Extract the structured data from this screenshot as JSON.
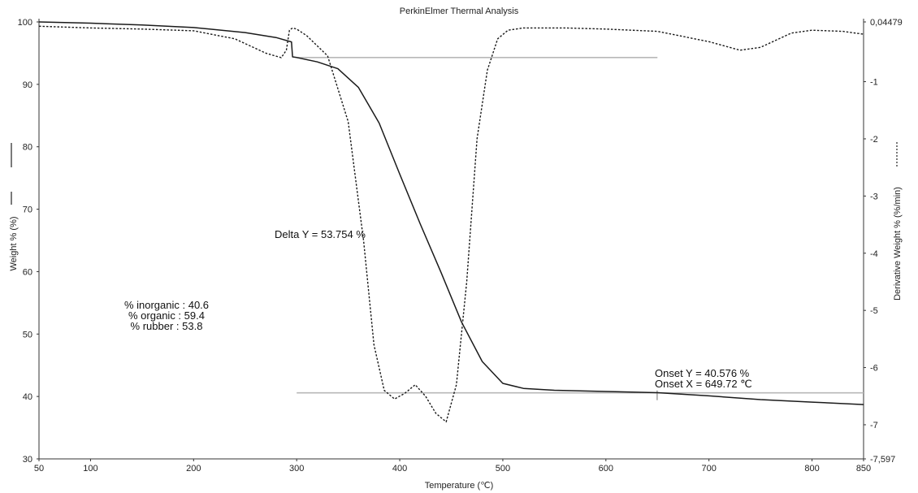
{
  "chart_data": {
    "type": "line",
    "title": "PerkinElmer Thermal Analysis",
    "xlabel": "Temperature (℃)",
    "ylabel": "Weight % (%)",
    "y2label": "Derivative Weight % (%/min)",
    "xlim": [
      50,
      850
    ],
    "ylim": [
      30,
      100
    ],
    "y2lim": [
      -7.597,
      0.04479
    ],
    "x_ticks": [
      "50",
      "100",
      "200",
      "300",
      "400",
      "500",
      "600",
      "700",
      "800",
      "850"
    ],
    "y_ticks": [
      "30",
      "40",
      "50",
      "60",
      "70",
      "80",
      "90",
      "100"
    ],
    "y2_ticks": [
      "-7,597",
      "-7",
      "-6",
      "-5",
      "-4",
      "-3",
      "-2",
      "-1",
      "0,04479"
    ],
    "grid": false,
    "series": [
      {
        "name": "Weight %",
        "axis": "left",
        "style": "solid",
        "x": [
          50,
          100,
          150,
          200,
          250,
          280,
          295,
          296,
          300,
          320,
          340,
          360,
          380,
          400,
          420,
          440,
          460,
          480,
          500,
          520,
          550,
          600,
          650,
          700,
          750,
          800,
          850
        ],
        "y": [
          100,
          99.8,
          99.5,
          99.1,
          98.3,
          97.5,
          96.8,
          94.4,
          94.3,
          93.6,
          92.5,
          89.5,
          83.8,
          75.6,
          67.6,
          59.9,
          51.9,
          45.6,
          42.1,
          41.3,
          41.0,
          40.8,
          40.6,
          40.1,
          39.5,
          39.1,
          38.7
        ]
      },
      {
        "name": "Derivative Weight %",
        "axis": "right",
        "style": "dashed",
        "x": [
          50,
          100,
          150,
          200,
          240,
          270,
          285,
          290,
          293,
          296,
          300,
          310,
          330,
          350,
          365,
          375,
          385,
          395,
          405,
          415,
          425,
          435,
          445,
          455,
          465,
          475,
          485,
          495,
          505,
          520,
          560,
          600,
          650,
          700,
          730,
          750,
          780,
          800,
          830,
          850
        ],
        "y": [
          -0.03,
          -0.06,
          -0.08,
          -0.11,
          -0.25,
          -0.5,
          -0.58,
          -0.45,
          -0.1,
          -0.06,
          -0.08,
          -0.2,
          -0.55,
          -1.7,
          -3.8,
          -5.6,
          -6.4,
          -6.55,
          -6.45,
          -6.3,
          -6.5,
          -6.8,
          -6.95,
          -6.3,
          -4.5,
          -2.0,
          -0.8,
          -0.25,
          -0.1,
          -0.06,
          -0.06,
          -0.08,
          -0.12,
          -0.3,
          -0.45,
          -0.4,
          -0.15,
          -0.1,
          -0.12,
          -0.17
        ]
      }
    ],
    "reference_lines": [
      {
        "name": "upper-delta-line",
        "x": [
          300,
          650
        ],
        "y": 94.3
      },
      {
        "name": "lower-delta-line",
        "x": [
          300,
          850
        ],
        "y": 40.576
      },
      {
        "name": "onset-marker",
        "x": 649.72,
        "y": 40.576
      }
    ],
    "annotations": {
      "delta": "Delta Y = 53.754 %",
      "onset_y": "Onset Y = 40.576 %",
      "onset_x": "Onset X = 649.72 ℃",
      "composition": [
        "% inorganic : 40.6",
        "% organic : 59.4",
        "% rubber : 53.8"
      ]
    }
  }
}
